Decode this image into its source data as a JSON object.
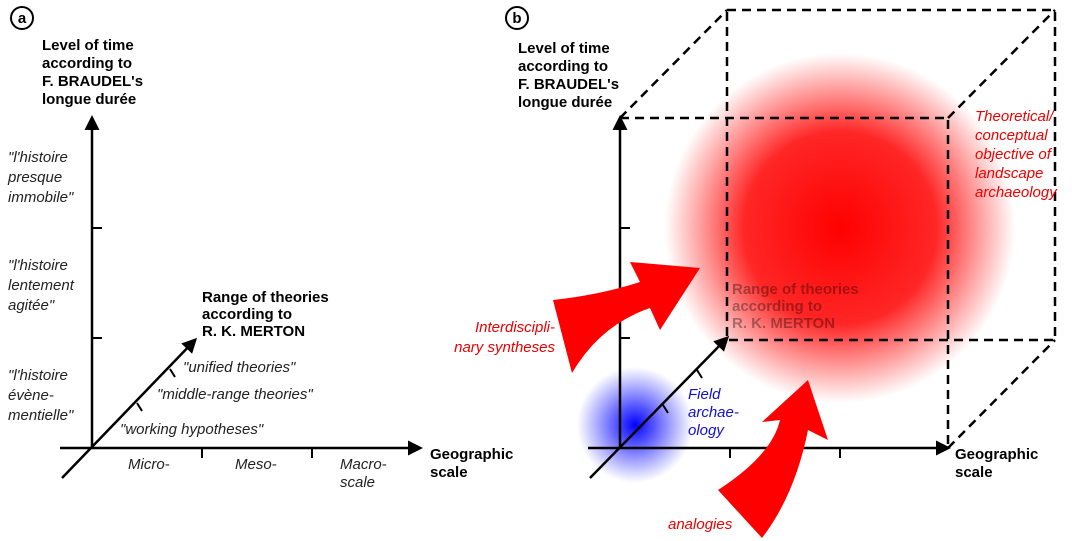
{
  "panel_a": {
    "label": "a",
    "y_axis_label": [
      "Level of time",
      "according to",
      "F. BRAUDEL's",
      "longue durée"
    ],
    "y_levels": [
      [
        "\"l'histoire",
        "presque",
        "immobile\""
      ],
      [
        "\"l'histoire",
        "lentement",
        "agitée\""
      ],
      [
        "\"l'histoire",
        "évène-",
        "mentielle\""
      ]
    ],
    "z_axis_label": [
      "Range of theories",
      "according to",
      "R. K. MERTON"
    ],
    "z_levels": [
      "\"unified theories\"",
      "\"middle-range theories\"",
      "\"working hypotheses\""
    ],
    "x_levels": [
      "Micro-",
      "Meso-",
      "Macro-",
      "scale"
    ],
    "x_axis_label": [
      "Geographic",
      "scale"
    ]
  },
  "panel_b": {
    "label": "b",
    "y_axis_label": [
      "Level of time",
      "according to",
      "F. BRAUDEL's",
      "longue durée"
    ],
    "z_axis_label": [
      "Range of theories",
      "according to",
      "R. K. MERTON"
    ],
    "x_axis_label": [
      "Geographic",
      "scale"
    ],
    "objective": [
      "Theoretical/",
      "conceptual",
      "objective of",
      "landscape",
      "archaeology"
    ],
    "syntheses": [
      "Interdiscipli-",
      "nary syntheses"
    ],
    "field": [
      "Field",
      "archae-",
      "ology"
    ],
    "analogies": "analogies"
  }
}
